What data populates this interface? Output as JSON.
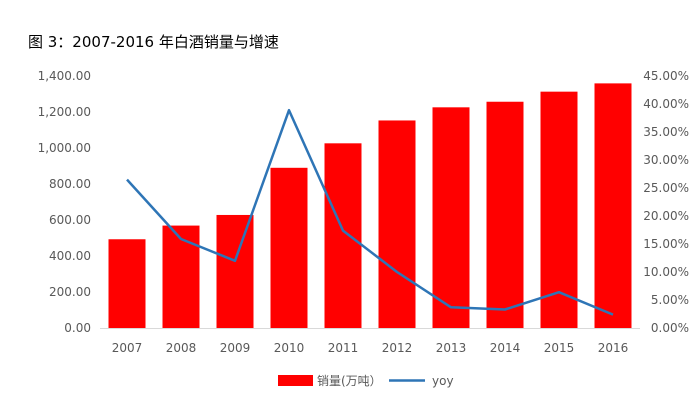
{
  "title": "图 3：2007-2016 年白酒销量与增速",
  "chart_data": {
    "type": "bar",
    "categories": [
      "2007",
      "2008",
      "2009",
      "2010",
      "2011",
      "2012",
      "2013",
      "2014",
      "2015",
      "2016"
    ],
    "series": [
      {
        "name": "销量(万吨）",
        "type": "bar",
        "axis": "left",
        "color": "#ff0000",
        "values": [
          493,
          569,
          628,
          890,
          1026,
          1153,
          1226,
          1257,
          1313,
          1359
        ]
      },
      {
        "name": "yoy",
        "type": "line",
        "axis": "right",
        "color": "#2e75b6",
        "values": [
          26.5,
          15.9,
          12.0,
          38.9,
          17.4,
          10.0,
          3.7,
          3.3,
          6.4,
          2.4
        ]
      }
    ],
    "y_left": {
      "ylim": [
        0,
        1400
      ],
      "ticks": [
        0,
        200,
        400,
        600,
        800,
        1000,
        1200,
        1400
      ],
      "tick_labels": [
        "0.00",
        "200.00",
        "400.00",
        "600.00",
        "800.00",
        "1,000.00",
        "1,200.00",
        "1,400.00"
      ]
    },
    "y_right": {
      "ylim": [
        0,
        45
      ],
      "ticks": [
        0,
        5,
        10,
        15,
        20,
        25,
        30,
        35,
        40,
        45
      ],
      "tick_labels": [
        "0.00%",
        "5.00%",
        "10.00%",
        "15.00%",
        "20.00%",
        "25.00%",
        "30.00%",
        "35.00%",
        "40.00%",
        "45.00%"
      ]
    },
    "grid": false,
    "legend": "bottom-center"
  }
}
